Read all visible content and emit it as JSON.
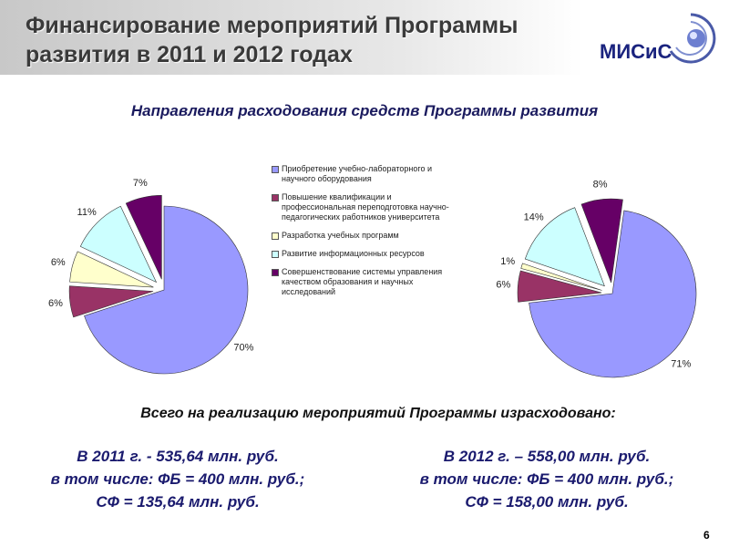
{
  "header": {
    "title_lines": [
      "Финансирование мероприятий Программы",
      "развития в 2011 и 2012 годах"
    ],
    "logo": "МИСиС"
  },
  "subtitle": "Направления расходования средств Программы развития",
  "chart_data": [
    {
      "type": "pie",
      "categories": [
        "Приобретение учебно-лабораторного и научного оборудования",
        "Повышение квалификации и профессиональная переподготовка научно-педагогических работников университета",
        "Разработка учебных программ",
        "Развитие информационных ресурсов",
        "Совершенствование системы управления качеством образования и научных исследований"
      ],
      "values": [
        70,
        6,
        6,
        11,
        7
      ],
      "value_labels": [
        "70%",
        "6%",
        "6%",
        "11%",
        "7%"
      ],
      "colors": [
        "#9999ff",
        "#993366",
        "#ffffcc",
        "#ccffff",
        "#660066"
      ]
    },
    {
      "type": "pie",
      "values": [
        71,
        6,
        1,
        14,
        8
      ],
      "value_labels": [
        "71%",
        "6%",
        "1%",
        "14%",
        "8%"
      ],
      "colors": [
        "#9999ff",
        "#993366",
        "#ffffcc",
        "#ccffff",
        "#660066"
      ]
    }
  ],
  "summary": {
    "heading": "Всего на реализацию мероприятий Программы израсходовано:",
    "columns": [
      [
        "В 2011 г. -  535,64 млн. руб.",
        "в том числе: ФБ = 400 млн. руб.;",
        "СФ = 135,64 млн. руб."
      ],
      [
        "В 2012 г. – 558,00 млн. руб.",
        "в том числе: ФБ = 400 млн. руб.;",
        "СФ = 158,00 млн. руб."
      ]
    ]
  },
  "page_number": "6"
}
